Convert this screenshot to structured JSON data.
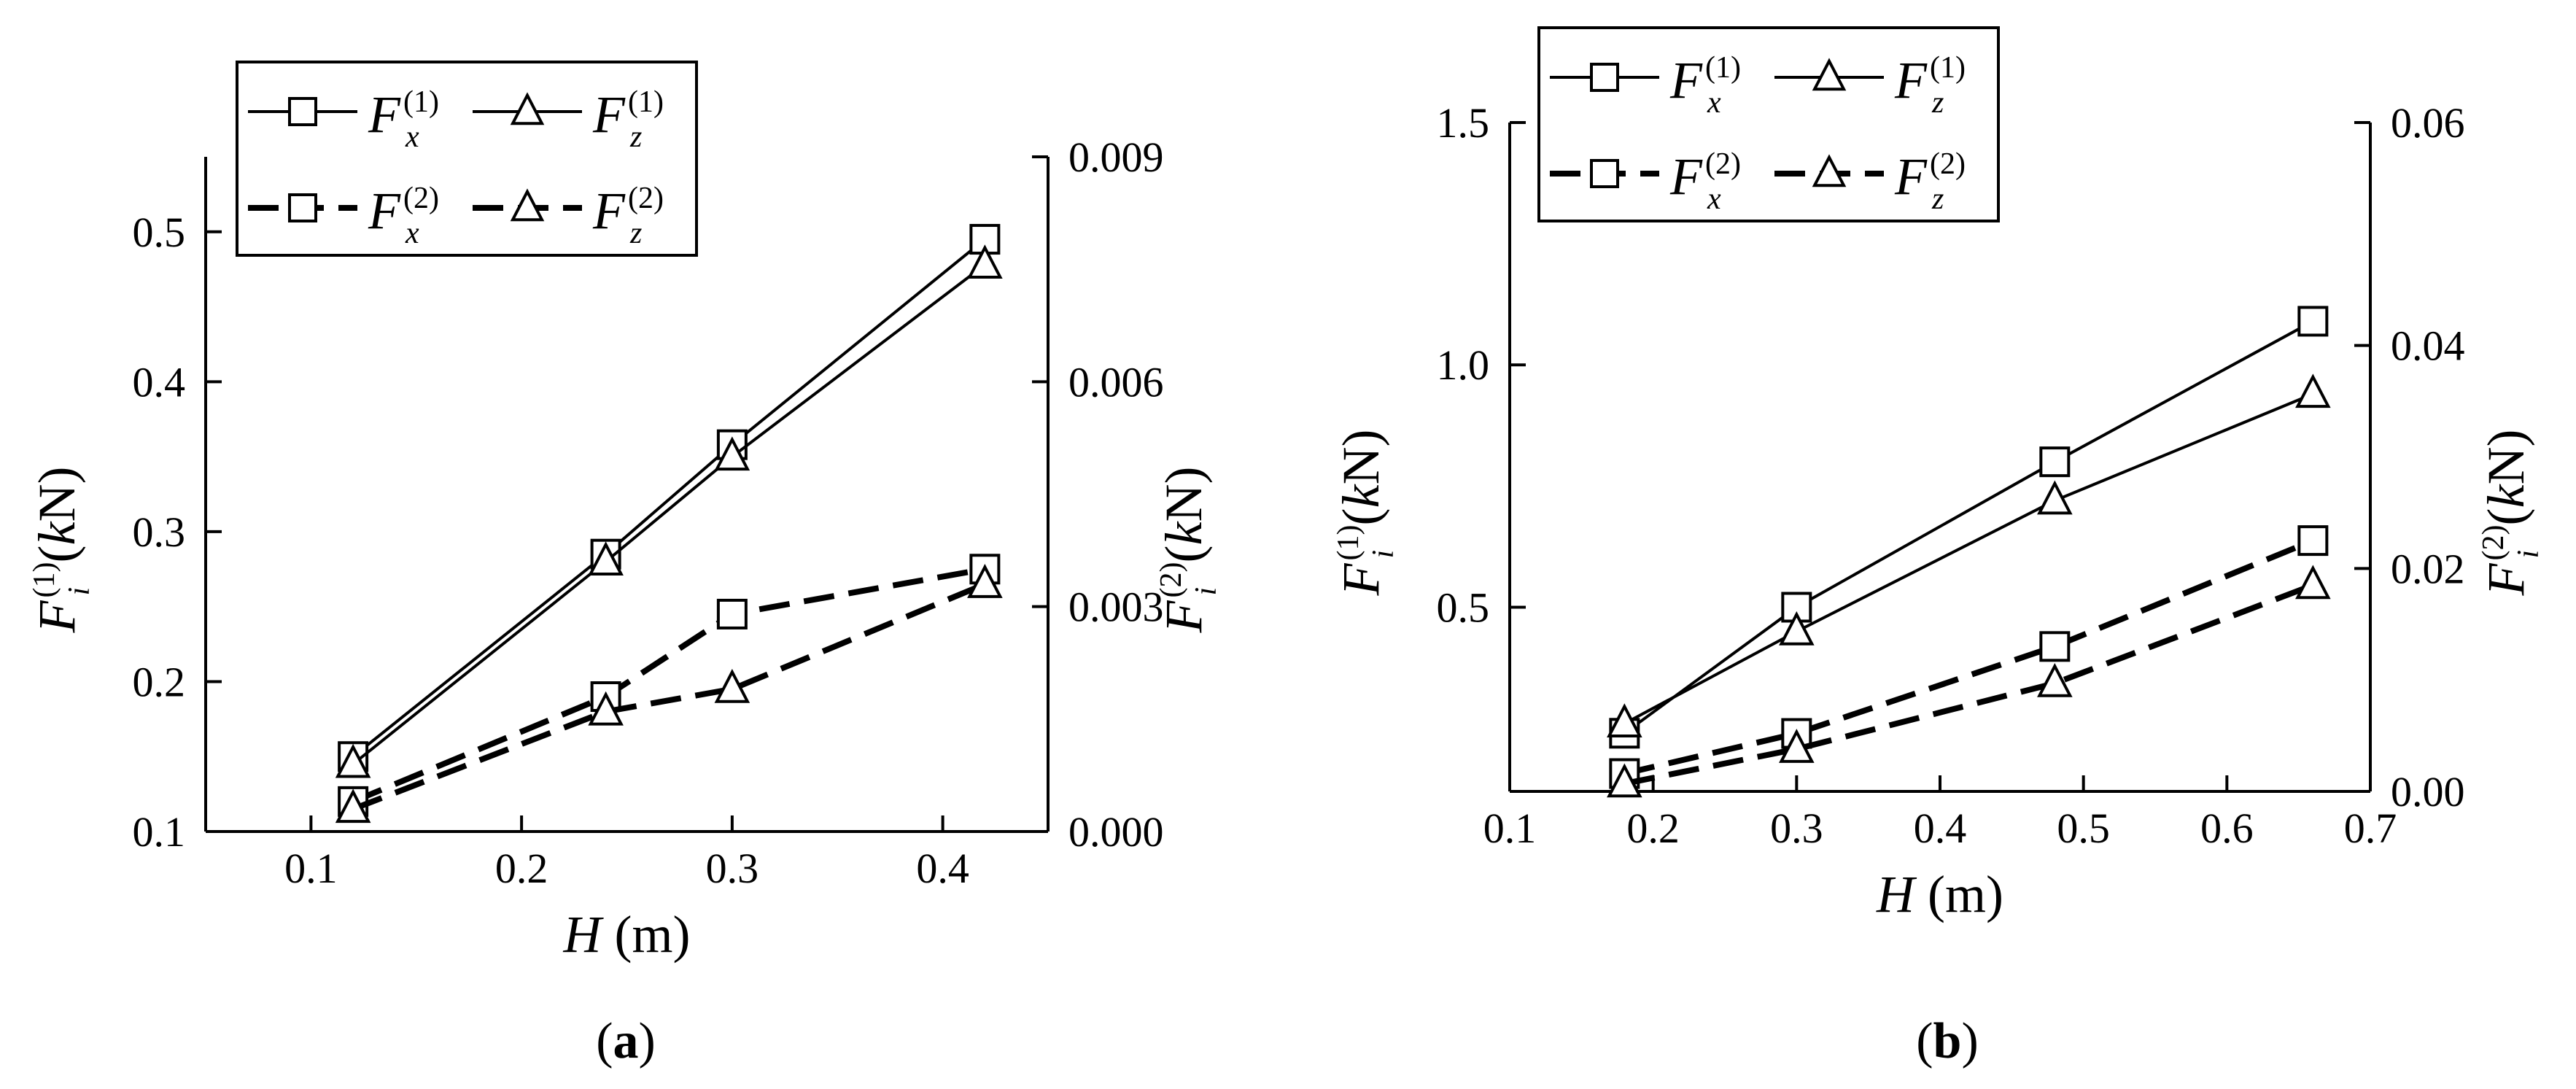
{
  "chart_data": [
    {
      "type": "line",
      "panel_label": "(a)",
      "xlabel": "H (m)",
      "ylabel_left": "F_i^(1) (kN)",
      "ylabel_right": "F_i^(2) (kN)",
      "xlim": [
        0.05,
        0.45
      ],
      "xticks": [
        "0.1",
        "0.2",
        "0.3",
        "0.4"
      ],
      "ylim_left": [
        0.1,
        0.55
      ],
      "yticks_left": [
        "0.1",
        "0.2",
        "0.3",
        "0.4",
        "0.5"
      ],
      "ylim_right": [
        0.0,
        0.009
      ],
      "yticks_right": [
        "0.000",
        "0.003",
        "0.006",
        "0.009"
      ],
      "legend_position": "top-left",
      "x": [
        0.12,
        0.24,
        0.3,
        0.42
      ],
      "series": [
        {
          "name": "Fx(1)",
          "axis": "left",
          "style": "solid",
          "marker": "square",
          "values": [
            0.15,
            0.285,
            0.358,
            0.495
          ]
        },
        {
          "name": "Fz(1)",
          "axis": "left",
          "style": "solid",
          "marker": "triangle",
          "values": [
            0.145,
            0.28,
            0.35,
            0.478
          ]
        },
        {
          "name": "Fx(2)",
          "axis": "right",
          "style": "dashed",
          "marker": "square",
          "values": [
            0.0004,
            0.0018,
            0.0029,
            0.0035
          ]
        },
        {
          "name": "Fz(2)",
          "axis": "right",
          "style": "dashed",
          "marker": "triangle",
          "values": [
            0.0003,
            0.0016,
            0.0019,
            0.0033
          ]
        }
      ]
    },
    {
      "type": "line",
      "panel_label": "(b)",
      "xlabel": "H (m)",
      "ylabel_left": "F_i^(1) (kN)",
      "ylabel_right": "F_i^(2) (kN)",
      "xlim": [
        0.1,
        0.7
      ],
      "xticks": [
        "0.1",
        "0.2",
        "0.3",
        "0.4",
        "0.5",
        "0.6",
        "0.7"
      ],
      "ylim_left": [
        0.12,
        1.5
      ],
      "yticks_left": [
        "0.5",
        "1.0",
        "1.5"
      ],
      "ylim_right": [
        0.0,
        0.06
      ],
      "yticks_right": [
        "0.00",
        "0.02",
        "0.04",
        "0.06"
      ],
      "legend_position": "top-left",
      "x": [
        0.18,
        0.3,
        0.48,
        0.66
      ],
      "series": [
        {
          "name": "Fx(1)",
          "axis": "left",
          "style": "solid",
          "marker": "square",
          "values": [
            0.24,
            0.5,
            0.8,
            1.09
          ]
        },
        {
          "name": "Fz(1)",
          "axis": "left",
          "style": "solid",
          "marker": "triangle",
          "values": [
            0.26,
            0.45,
            0.72,
            0.94
          ]
        },
        {
          "name": "Fx(2)",
          "axis": "right",
          "style": "dashed",
          "marker": "square",
          "values": [
            0.0016,
            0.0052,
            0.013,
            0.0225
          ]
        },
        {
          "name": "Fz(2)",
          "axis": "right",
          "style": "dashed",
          "marker": "triangle",
          "values": [
            0.0007,
            0.0038,
            0.0097,
            0.0185
          ]
        }
      ]
    }
  ]
}
